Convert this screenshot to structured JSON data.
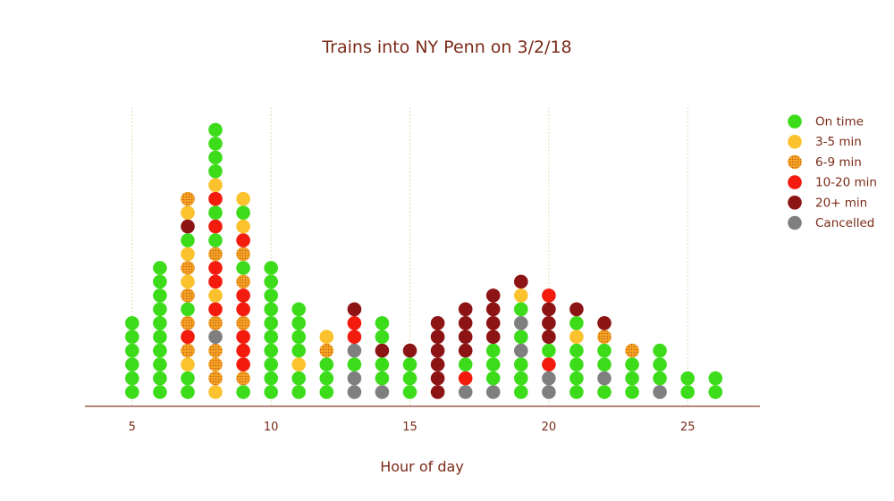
{
  "chart_data": {
    "type": "scatter",
    "subtype": "stacked-dot-plot",
    "title": "Trains into NY Penn on 3/2/18",
    "xlabel": "Hour of day",
    "ylabel": "",
    "xlim": [
      3.3,
      27.6
    ],
    "xticks": [
      5,
      10,
      15,
      20,
      25
    ],
    "grid": "vertical-dotted",
    "legend_position": "top-right",
    "categories": [
      {
        "key": "on",
        "label": "On time",
        "color": "#3ddc1b",
        "pattern": "solid"
      },
      {
        "key": "s",
        "label": "3-5 min",
        "color": "#fcc22e",
        "pattern": "solid"
      },
      {
        "key": "m",
        "label": "6-9 min",
        "color": "#f5a623",
        "pattern": "dotted"
      },
      {
        "key": "r",
        "label": "10-20 min",
        "color": "#f21b0d",
        "pattern": "solid"
      },
      {
        "key": "d",
        "label": "20+ min",
        "color": "#8c1414",
        "pattern": "solid"
      },
      {
        "key": "c",
        "label": "Cancelled",
        "color": "#7f7f7f",
        "pattern": "solid"
      }
    ],
    "columns": [
      {
        "x": 5,
        "stack": [
          "on",
          "on",
          "on",
          "on",
          "on",
          "on"
        ]
      },
      {
        "x": 6,
        "stack": [
          "on",
          "on",
          "on",
          "on",
          "on",
          "on",
          "on",
          "on",
          "on",
          "on"
        ]
      },
      {
        "x": 7,
        "stack": [
          "on",
          "on",
          "s",
          "m",
          "r",
          "m",
          "on",
          "m",
          "s",
          "m",
          "s",
          "on",
          "d",
          "s",
          "m"
        ]
      },
      {
        "x": 8,
        "stack": [
          "s",
          "m",
          "m",
          "m",
          "c",
          "m",
          "r",
          "s",
          "r",
          "r",
          "m",
          "on",
          "r",
          "on",
          "r",
          "s",
          "on",
          "on",
          "on",
          "on"
        ]
      },
      {
        "x": 9,
        "stack": [
          "on",
          "m",
          "r",
          "r",
          "r",
          "m",
          "r",
          "r",
          "m",
          "on",
          "m",
          "r",
          "s",
          "on",
          "s"
        ]
      },
      {
        "x": 10,
        "stack": [
          "on",
          "on",
          "on",
          "on",
          "on",
          "on",
          "on",
          "on",
          "on",
          "on"
        ]
      },
      {
        "x": 11,
        "stack": [
          "on",
          "on",
          "s",
          "on",
          "on",
          "on",
          "on"
        ]
      },
      {
        "x": 12,
        "stack": [
          "on",
          "on",
          "on",
          "m",
          "s"
        ]
      },
      {
        "x": 13,
        "stack": [
          "c",
          "c",
          "on",
          "c",
          "r",
          "r",
          "d"
        ]
      },
      {
        "x": 14,
        "stack": [
          "c",
          "on",
          "on",
          "d",
          "on",
          "on"
        ]
      },
      {
        "x": 15,
        "stack": [
          "on",
          "on",
          "on",
          "d"
        ]
      },
      {
        "x": 16,
        "stack": [
          "d",
          "d",
          "d",
          "d",
          "d",
          "d"
        ]
      },
      {
        "x": 17,
        "stack": [
          "c",
          "r",
          "on",
          "d",
          "d",
          "d",
          "d"
        ]
      },
      {
        "x": 18,
        "stack": [
          "c",
          "on",
          "on",
          "on",
          "d",
          "d",
          "d",
          "d"
        ]
      },
      {
        "x": 19,
        "stack": [
          "on",
          "on",
          "on",
          "c",
          "on",
          "c",
          "on",
          "s",
          "d"
        ]
      },
      {
        "x": 20,
        "stack": [
          "c",
          "c",
          "r",
          "on",
          "d",
          "d",
          "d",
          "r"
        ]
      },
      {
        "x": 21,
        "stack": [
          "on",
          "on",
          "on",
          "on",
          "s",
          "on",
          "d"
        ]
      },
      {
        "x": 22,
        "stack": [
          "on",
          "c",
          "on",
          "on",
          "m",
          "d"
        ]
      },
      {
        "x": 23,
        "stack": [
          "on",
          "on",
          "on",
          "m"
        ]
      },
      {
        "x": 24,
        "stack": [
          "c",
          "on",
          "on",
          "on"
        ]
      },
      {
        "x": 25,
        "stack": [
          "on",
          "on"
        ]
      },
      {
        "x": 26,
        "stack": [
          "on",
          "on"
        ]
      }
    ]
  }
}
